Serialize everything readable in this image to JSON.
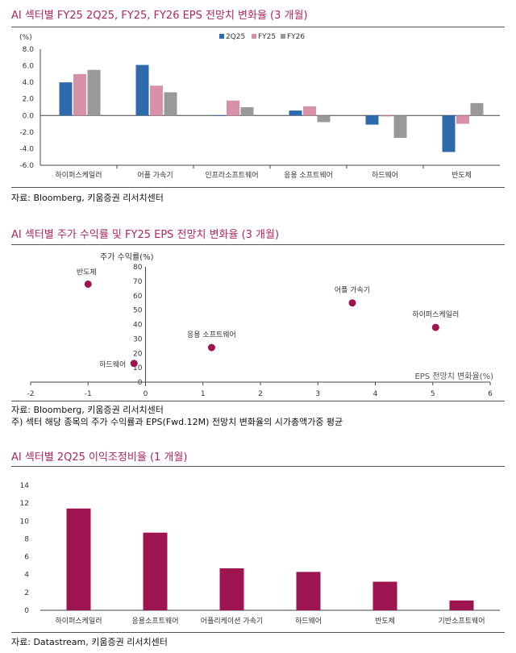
{
  "sections": {
    "s1": {
      "title": "AI 섹터별 FY25 2Q25, FY25, FY26 EPS 전망치 변화율 (3 개월)",
      "source": "자료: Bloomberg, 키움증권 리서치센터"
    },
    "s2": {
      "title": "AI 섹터별 주가 수익률 및 FY25 EPS 전망치 변화율 (3 개월)",
      "source": "자료: Bloomberg, 키움증권 리서치센터",
      "note": "주) 섹터 해당 종목의 주가 수익률과 EPS(Fwd.12M) 전망치 변화율의 시가총액가중 평균"
    },
    "s3": {
      "title": "AI 섹터별 2Q25 이익조정비율 (1 개월)",
      "source": "자료: Datastream, 키움증권 리서치센터"
    }
  },
  "chart_data": [
    {
      "type": "bar",
      "unit_label": "(%)",
      "categories": [
        "하이퍼스케일러",
        "어플 가속기",
        "인프라소프트웨어",
        "응용 소프트웨어",
        "하드웨어",
        "반도체"
      ],
      "series": [
        {
          "name": "2Q25",
          "color": "#2e6bad",
          "values": [
            4.0,
            6.1,
            0.0,
            0.6,
            -1.1,
            -4.4
          ]
        },
        {
          "name": "FY25",
          "color": "#d890a6",
          "values": [
            5.0,
            3.6,
            1.8,
            1.1,
            -0.1,
            -1.0
          ]
        },
        {
          "name": "FY26",
          "color": "#999999",
          "values": [
            5.5,
            2.8,
            1.0,
            -0.8,
            -2.7,
            1.5
          ]
        }
      ],
      "ylim": [
        -6.0,
        8.0
      ],
      "yticks": [
        "8.0",
        "6.0",
        "4.0",
        "2.0",
        "0.0",
        "-2.0",
        "-4.0",
        "-6.0"
      ],
      "legend": "top",
      "grid": false
    },
    {
      "type": "scatter",
      "ylabel": "주가 수익률(%)",
      "xlabel": "EPS 전망치 변화율(%)",
      "xlim": [
        -2,
        6
      ],
      "ylim": [
        0,
        80
      ],
      "xticks": [
        "-2",
        "-1",
        "0",
        "1",
        "2",
        "3",
        "4",
        "5",
        "6"
      ],
      "yticks": [
        "80",
        "70",
        "60",
        "50",
        "40",
        "30",
        "20",
        "10",
        "0"
      ],
      "color": "#9e1450",
      "points": [
        {
          "label": "반도체",
          "x": -1.0,
          "y": 68
        },
        {
          "label": "어플 가속기",
          "x": 3.6,
          "y": 55
        },
        {
          "label": "하이퍼스케일러",
          "x": 5.05,
          "y": 38
        },
        {
          "label": "응용 소프트웨어",
          "x": 1.15,
          "y": 24
        },
        {
          "label": "하드웨어",
          "x": -0.2,
          "y": 13
        }
      ],
      "grid": false
    },
    {
      "type": "bar",
      "categories": [
        "하이퍼스케일러",
        "응용소프트웨어",
        "어플리케이션 가속기",
        "하드웨어",
        "반도체",
        "기반소프트웨어"
      ],
      "values": [
        11.4,
        8.7,
        4.7,
        4.3,
        3.2,
        1.1
      ],
      "color": "#9e1450",
      "ylim": [
        0,
        14
      ],
      "yticks": [
        "14",
        "12",
        "10",
        "8",
        "6",
        "4",
        "2",
        "0"
      ],
      "grid": false
    }
  ]
}
